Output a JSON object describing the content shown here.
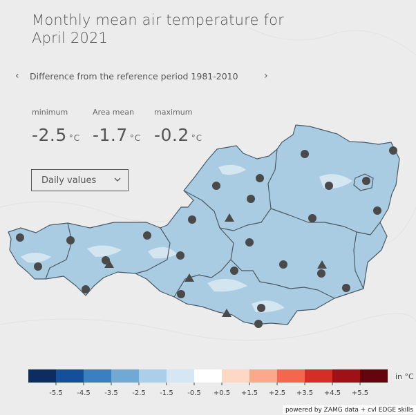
{
  "header": {
    "title": "Monthly mean air temperature for April 2021"
  },
  "period": {
    "label": "Difference from the reference period 1981-2010",
    "prev_arrow": "‹",
    "next_arrow": "›"
  },
  "stats": [
    {
      "label": "minimum",
      "value": "-2.5",
      "unit": "°C"
    },
    {
      "label": "Area mean",
      "value": "-1.7",
      "unit": "°C"
    },
    {
      "label": "maximum",
      "value": "-0.2",
      "unit": "°C"
    }
  ],
  "dropdown": {
    "selected": "Daily values"
  },
  "legend": {
    "unit_label": "in °C",
    "ticks": [
      "-5.5",
      "-4.5",
      "-3.5",
      "-2.5",
      "-1.5",
      "-0.5",
      "+0.5",
      "+1.5",
      "+2.5",
      "+3.5",
      "+4.5",
      "+5.5"
    ],
    "colors": [
      "#0c2c62",
      "#14509a",
      "#3a7fc0",
      "#70a9d5",
      "#aacfe6",
      "#d5e6f4",
      "#ffffff",
      "#fdd8c4",
      "#fba98a",
      "#f2674d",
      "#d42e26",
      "#9f1117",
      "#64050e"
    ]
  },
  "map": {
    "fill_color": "#a9cce2",
    "station_marker": "circle",
    "mountain_station_marker": "triangle"
  },
  "credit": "powered by ZAMG data + cvl EDGE skills"
}
